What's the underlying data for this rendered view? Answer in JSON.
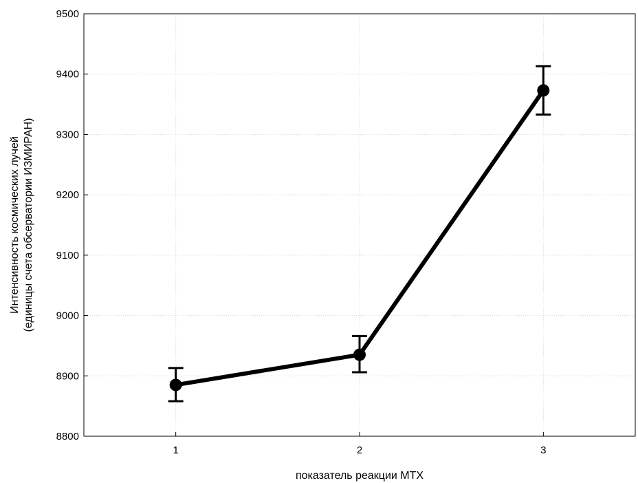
{
  "chart_data": {
    "type": "line",
    "title": "",
    "xlabel": "показатель реакции МТХ",
    "ylabel_lines": [
      "Интенсивность космических лучей",
      "(единицы счета обсерватории ИЗМИРАН)"
    ],
    "categories": [
      "1",
      "2",
      "3"
    ],
    "series": [
      {
        "values": [
          8885,
          8935,
          9373
        ],
        "error_low": [
          8858,
          8906,
          9333
        ],
        "error_high": [
          8913,
          8966,
          9413
        ],
        "color": "#000000"
      }
    ],
    "ylim": [
      8800,
      9500
    ],
    "yticks": [
      8800,
      8900,
      9000,
      9100,
      9200,
      9300,
      9400,
      9500
    ],
    "ytick_labels": [
      "8800",
      "8900",
      "9000",
      "9100",
      "9200",
      "9300",
      "9400",
      "9500"
    ],
    "grid": true,
    "legend": false
  }
}
